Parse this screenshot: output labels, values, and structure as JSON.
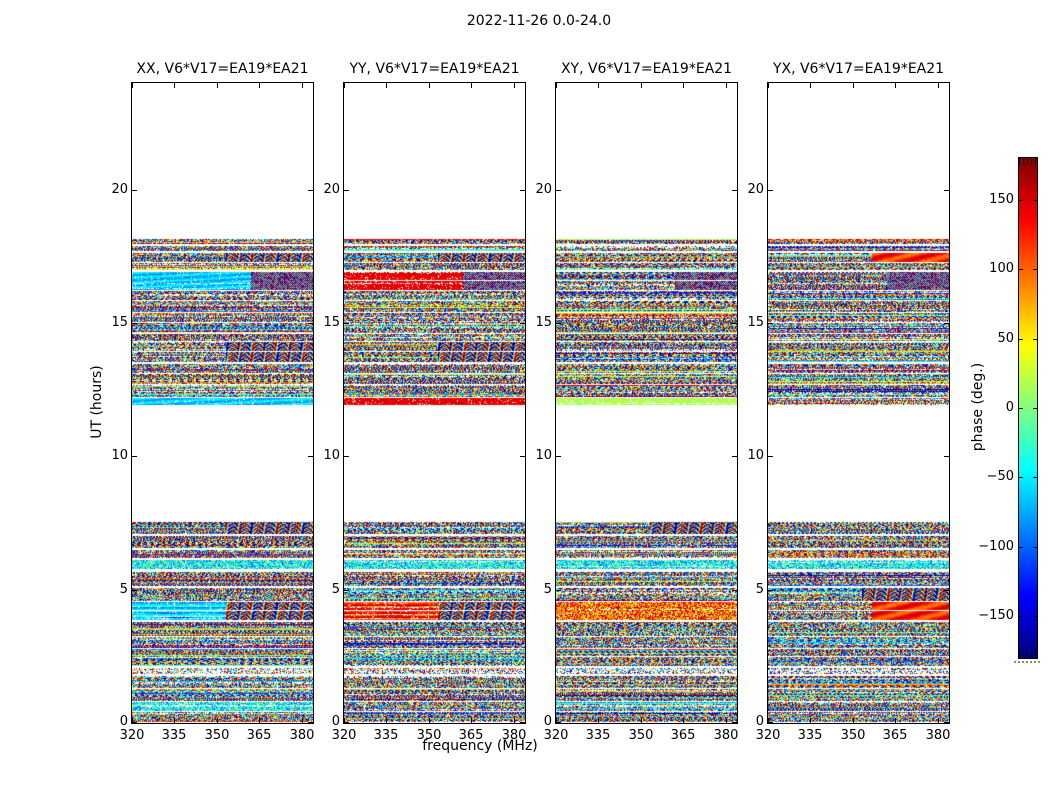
{
  "figure": {
    "title": "2022-11-26 0.0-24.0",
    "xlabel": "frequency (MHz)",
    "ylabel": "UT (hours)"
  },
  "chart_data": {
    "type": "heatmap",
    "title": "2022-11-26 0.0-24.0",
    "xlabel": "frequency (MHz)",
    "ylabel": "UT (hours)",
    "x_range_mhz": [
      320,
      384
    ],
    "x_ticks": [
      320,
      335,
      350,
      365,
      380
    ],
    "y_range_hours": [
      0,
      24
    ],
    "y_ticks": [
      0,
      5,
      10,
      15,
      20
    ],
    "panels": [
      {
        "pol": "XX",
        "label": "XX, V6*V17=EA19*EA21"
      },
      {
        "pol": "YY",
        "label": "YY, V6*V17=EA19*EA21"
      },
      {
        "pol": "XY",
        "label": "XY, V6*V17=EA19*EA21"
      },
      {
        "pol": "YX",
        "label": "YX, V6*V17=EA19*EA21"
      }
    ],
    "colorbar": {
      "label": "phase (deg.)",
      "min": -180,
      "max": 180,
      "ticks": [
        150,
        100,
        50,
        0,
        -50,
        -100,
        -150
      ],
      "colormap": "jet",
      "colors": [
        "#00007f",
        "#0000ff",
        "#00ffff",
        "#80ff80",
        "#ffff00",
        "#ff0000",
        "#7f0000"
      ],
      "stops_pct": [
        0,
        12.5,
        37.5,
        50,
        62.5,
        87.5,
        100
      ]
    },
    "observation_gaps_hours": [
      [
        7.6,
        11.9
      ],
      [
        18.2,
        24.0
      ]
    ],
    "bands": [
      {
        "t": [
          17.95,
          18.15
        ],
        "styles": [
          "n",
          "n",
          "n",
          "n"
        ]
      },
      {
        "t": [
          17.7,
          17.9
        ],
        "styles": [
          "n",
          "n",
          "n",
          "n"
        ]
      },
      {
        "t": [
          17.28,
          17.62
        ],
        "styles": [
          "n+w",
          "n+w",
          "n",
          "n+r"
        ]
      },
      {
        "t": [
          16.98,
          17.24
        ],
        "styles": [
          "n",
          "n",
          "n",
          "n"
        ]
      },
      {
        "t": [
          16.25,
          16.92
        ],
        "styles": [
          "cyan+c",
          "red+c",
          "n+c",
          "n+c"
        ]
      },
      {
        "t": [
          15.88,
          16.2
        ],
        "styles": [
          "n",
          "n",
          "n",
          "n"
        ]
      },
      {
        "t": [
          15.42,
          15.84
        ],
        "styles": [
          "n",
          "n",
          "n",
          "n"
        ]
      },
      {
        "t": [
          14.62,
          15.38
        ],
        "styles": [
          "n",
          "n",
          "n",
          "n"
        ]
      },
      {
        "t": [
          14.32,
          14.58
        ],
        "styles": [
          "n",
          "n",
          "n",
          "n"
        ]
      },
      {
        "t": [
          13.52,
          14.28
        ],
        "styles": [
          "n+w",
          "n+w",
          "n",
          "n"
        ]
      },
      {
        "t": [
          13.12,
          13.48
        ],
        "styles": [
          "n",
          "n",
          "n",
          "n"
        ]
      },
      {
        "t": [
          12.72,
          13.08
        ],
        "styles": [
          "n",
          "n",
          "n",
          "n"
        ]
      },
      {
        "t": [
          12.22,
          12.68
        ],
        "styles": [
          "n",
          "n",
          "n",
          "n"
        ]
      },
      {
        "t": [
          11.94,
          12.18
        ],
        "styles": [
          "cyan",
          "red",
          "green",
          "n"
        ]
      },
      {
        "t": [
          7.08,
          7.52
        ],
        "styles": [
          "n+w",
          "n",
          "n+w",
          "n"
        ]
      },
      {
        "t": [
          6.55,
          7.02
        ],
        "styles": [
          "n",
          "n",
          "n",
          "n"
        ]
      },
      {
        "t": [
          6.18,
          6.5
        ],
        "styles": [
          "n",
          "n",
          "n",
          "n"
        ]
      },
      {
        "t": [
          5.78,
          6.12
        ],
        "styles": [
          "cn",
          "cn",
          "cn",
          "cn"
        ]
      },
      {
        "t": [
          5.12,
          5.68
        ],
        "styles": [
          "n",
          "n",
          "n",
          "n"
        ]
      },
      {
        "t": [
          4.58,
          5.08
        ],
        "styles": [
          "n",
          "n",
          "n",
          "n+w"
        ]
      },
      {
        "t": [
          3.85,
          4.52
        ],
        "styles": [
          "csty+w",
          "rsty+w",
          "nw",
          "n+r"
        ]
      },
      {
        "t": [
          3.28,
          3.78
        ],
        "styles": [
          "n",
          "n",
          "n",
          "n"
        ]
      },
      {
        "t": [
          2.82,
          3.22
        ],
        "styles": [
          "n",
          "n",
          "n",
          "n"
        ]
      },
      {
        "t": [
          2.12,
          2.78
        ],
        "styles": [
          "n",
          "n",
          "n",
          "n"
        ]
      },
      {
        "t": [
          1.84,
          2.06
        ],
        "styles": [
          "ns",
          "ns",
          "ns",
          "ns"
        ]
      },
      {
        "t": [
          1.32,
          1.78
        ],
        "styles": [
          "n",
          "n",
          "n",
          "n"
        ]
      },
      {
        "t": [
          0.84,
          1.28
        ],
        "styles": [
          "n",
          "n",
          "n",
          "n"
        ]
      },
      {
        "t": [
          0.44,
          0.8
        ],
        "styles": [
          "cn",
          "n",
          "n",
          "n"
        ]
      },
      {
        "t": [
          0.02,
          0.4
        ],
        "styles": [
          "n",
          "n",
          "n",
          "n"
        ]
      }
    ]
  }
}
